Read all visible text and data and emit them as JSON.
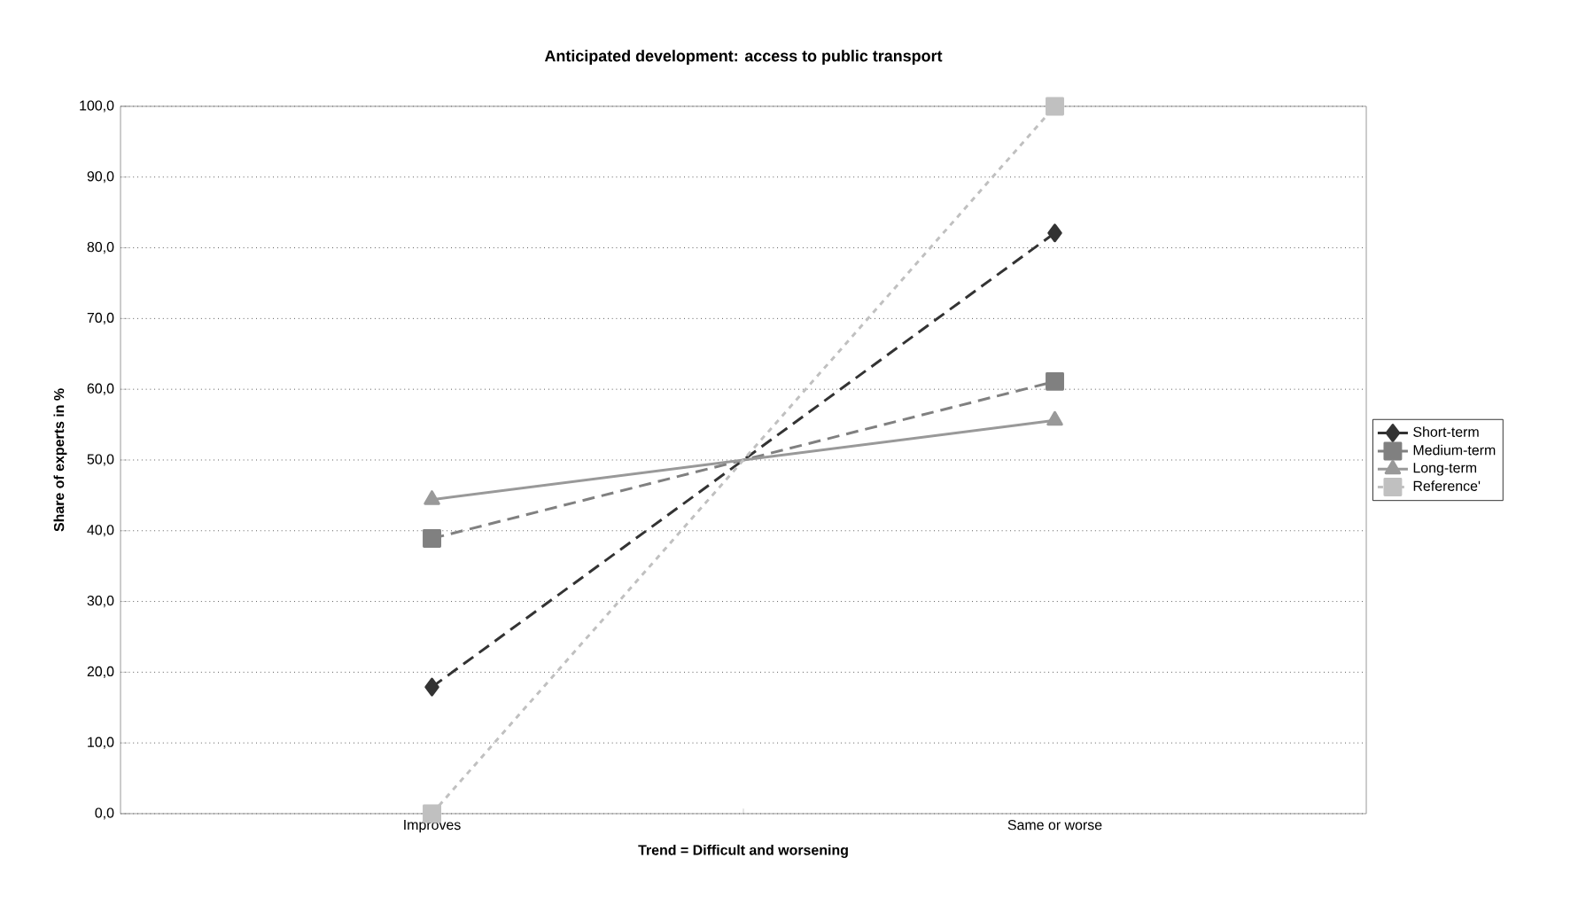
{
  "chart_data": {
    "type": "line",
    "title": "Anticipated development: access to public transport",
    "xlabel": "Trend = Difficult and worsening",
    "ylabel": "Share of experts in %",
    "categories": [
      "Improves",
      "Same or worse"
    ],
    "series": [
      {
        "name": "Short-term",
        "color": "#333333",
        "values": [
          17.9,
          82.1
        ],
        "marker": "diamond",
        "line_style": "dashed"
      },
      {
        "name": "Medium-term",
        "color": "#808080",
        "values": [
          38.9,
          61.1
        ],
        "marker": "square",
        "line_style": "dashed"
      },
      {
        "name": "Long-term",
        "color": "#999999",
        "values": [
          44.4,
          55.6
        ],
        "marker": "triangle",
        "line_style": "solid"
      },
      {
        "name": "Reference'",
        "color": "#c0c0c0",
        "values": [
          0,
          100
        ],
        "marker": "square",
        "line_style": "dotted"
      }
    ],
    "ylim": [
      0,
      100
    ],
    "yticks": [
      {
        "value": 0,
        "label": "0,0"
      },
      {
        "value": 10,
        "label": "10,0"
      },
      {
        "value": 20,
        "label": "20,0"
      },
      {
        "value": 30,
        "label": "30,0"
      },
      {
        "value": 40,
        "label": "40,0"
      },
      {
        "value": 50,
        "label": "50,0"
      },
      {
        "value": 60,
        "label": "60,0"
      },
      {
        "value": 70,
        "label": "70,0"
      },
      {
        "value": 80,
        "label": "80,0"
      },
      {
        "value": 90,
        "label": "90,0"
      },
      {
        "value": 100,
        "label": "100,0"
      }
    ],
    "grid": "y",
    "legend": "right"
  }
}
